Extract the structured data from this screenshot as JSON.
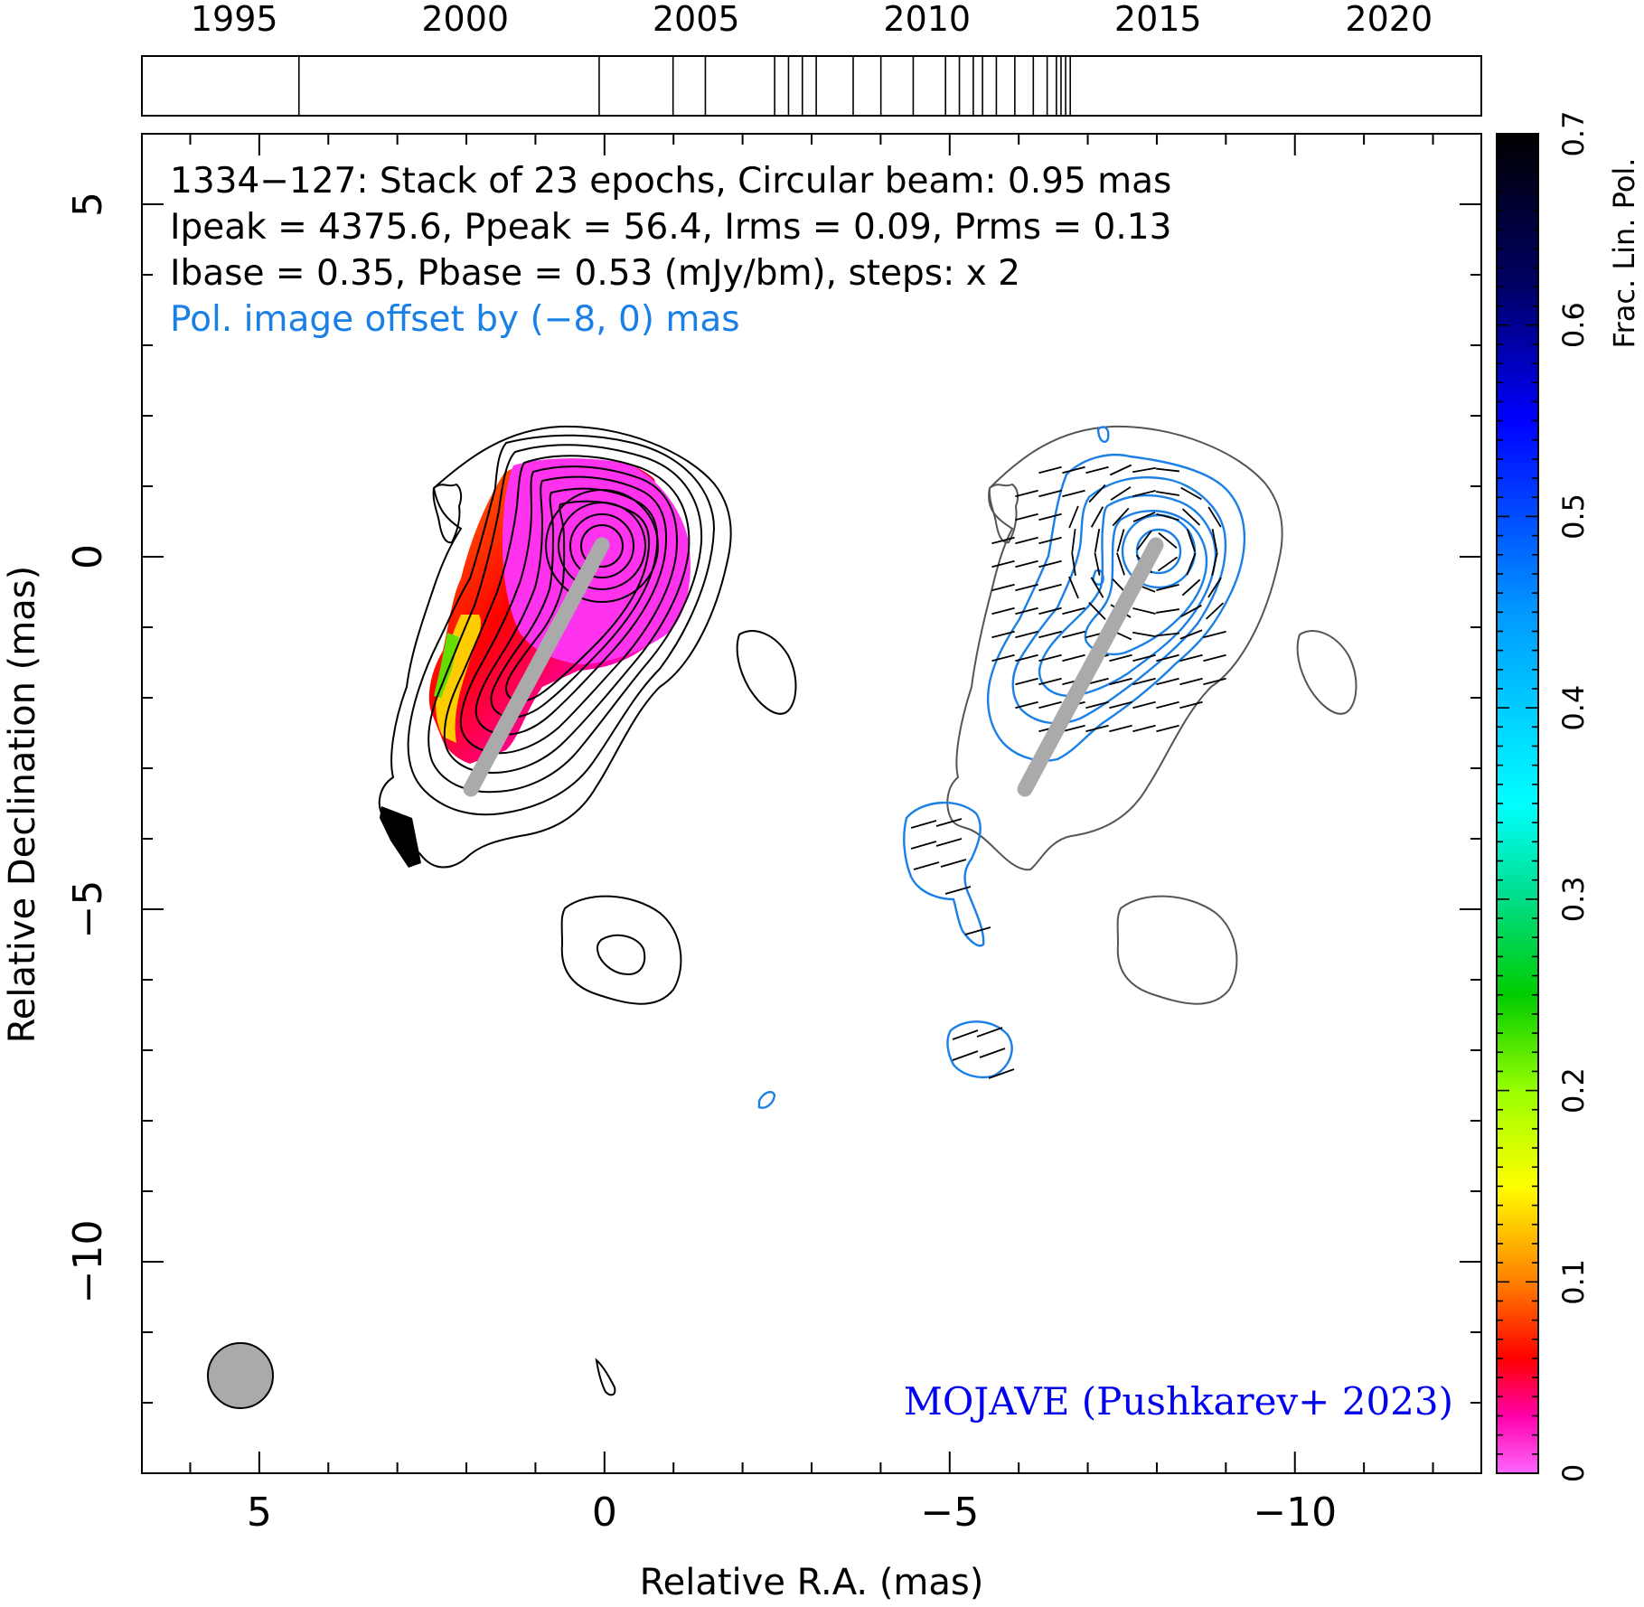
{
  "chart_data": {
    "type": "contour",
    "title_lines": [
      "1334−127: Stack of 23 epochs, Circular beam: 0.95 mas",
      "Ipeak = 4375.6, Ppeak = 56.4, Irms = 0.09, Prms = 0.13",
      "Ibase = 0.35, Pbase = 0.53 (mJy/bm), steps: x 2"
    ],
    "offset_note": "Pol. image offset by (−8, 0) mas",
    "credit": "MOJAVE (Pushkarev+ 2023)",
    "xlabel": "Relative R.A. (mas)",
    "ylabel": "Relative Declination (mas)",
    "xlim": [
      6.7,
      -12.7
    ],
    "ylim": [
      -13.0,
      6.0
    ],
    "xticks": [
      5,
      0,
      -5,
      -10
    ],
    "xtick_labels": [
      "5",
      "0",
      "−5",
      "−10"
    ],
    "yticks": [
      5,
      0,
      -5,
      -10
    ],
    "ytick_labels": [
      "5",
      "0",
      "−5",
      "−10"
    ],
    "beam_fwhm_mas": 0.95,
    "jet_direction_line": {
      "from": [
        0,
        0
      ],
      "to": [
        1.9,
        -3.5
      ]
    },
    "pol_offset_mas": [
      -8,
      0
    ],
    "epoch_timeline": {
      "xlim": [
        1993.0,
        2022.0
      ],
      "ticks": [
        1995,
        2000,
        2005,
        2010,
        2015,
        2020
      ],
      "tick_labels": [
        "1995",
        "2000",
        "2005",
        "2010",
        "2015",
        "2020"
      ],
      "epochs": [
        1996.4,
        2002.9,
        2004.5,
        2005.2,
        2006.7,
        2007.0,
        2007.3,
        2007.6,
        2008.4,
        2009.0,
        2009.7,
        2010.4,
        2010.7,
        2011.0,
        2011.2,
        2011.5,
        2011.9,
        2012.3,
        2012.6,
        2012.8,
        2012.9,
        2013.0,
        2013.1
      ]
    },
    "colorbar": {
      "label": "Frac. Lin. Pol.",
      "range": [
        0,
        0.7
      ],
      "ticks": [
        0,
        0.1,
        0.2,
        0.3,
        0.4,
        0.5,
        0.6,
        0.7
      ],
      "tick_labels": [
        "0",
        "0.1",
        "0.2",
        "0.3",
        "0.4",
        "0.5",
        "0.6",
        "0.7"
      ],
      "stops": [
        {
          "v": 0.0,
          "color": "#ff66ff"
        },
        {
          "v": 0.03,
          "color": "#ff00aa"
        },
        {
          "v": 0.06,
          "color": "#ff0000"
        },
        {
          "v": 0.1,
          "color": "#ff7f00"
        },
        {
          "v": 0.15,
          "color": "#ffff00"
        },
        {
          "v": 0.2,
          "color": "#99ff00"
        },
        {
          "v": 0.25,
          "color": "#00cc00"
        },
        {
          "v": 0.3,
          "color": "#00dd88"
        },
        {
          "v": 0.35,
          "color": "#00ffff"
        },
        {
          "v": 0.45,
          "color": "#0099ff"
        },
        {
          "v": 0.55,
          "color": "#0000ff"
        },
        {
          "v": 0.62,
          "color": "#000066"
        },
        {
          "v": 0.7,
          "color": "#000000"
        }
      ]
    },
    "colors": {
      "stokes_i_contour": "#000000",
      "stokes_i_contour_pol_panel": "#555555",
      "pol_contour": "#1a80e6",
      "evpa_ticks": "#000000",
      "jet_line": "#aaaaaa",
      "beam_fill": "#aaaaaa",
      "offset_note": "#1a80e6",
      "credit": "#0000ee"
    }
  }
}
